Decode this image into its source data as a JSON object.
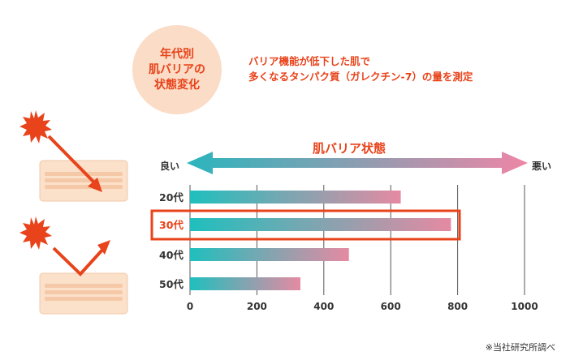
{
  "badge": {
    "lines": [
      "年代別",
      "肌バリアの",
      "状態変化"
    ]
  },
  "headline": {
    "lines": [
      "バリア機能が低下した肌で",
      "多くなるタンパク質（ガレクチン-7）の量を測定"
    ]
  },
  "scale": {
    "title": "肌バリア状態",
    "good_label": "良い",
    "bad_label": "悪い"
  },
  "footnote": "※当社研究所調べ",
  "colors": {
    "accent": "#e8431a",
    "bar_start": "#1fbfbe",
    "bar_end": "#e58aa2",
    "grid": "#555555"
  },
  "chart_data": {
    "type": "bar",
    "orientation": "horizontal",
    "categories": [
      "20代",
      "30代",
      "40代",
      "50代"
    ],
    "values": [
      630,
      780,
      475,
      330
    ],
    "xlim": [
      0,
      1000
    ],
    "xticks": [
      0,
      200,
      400,
      600,
      800,
      1000
    ],
    "highlight": "30代",
    "grid": true
  }
}
